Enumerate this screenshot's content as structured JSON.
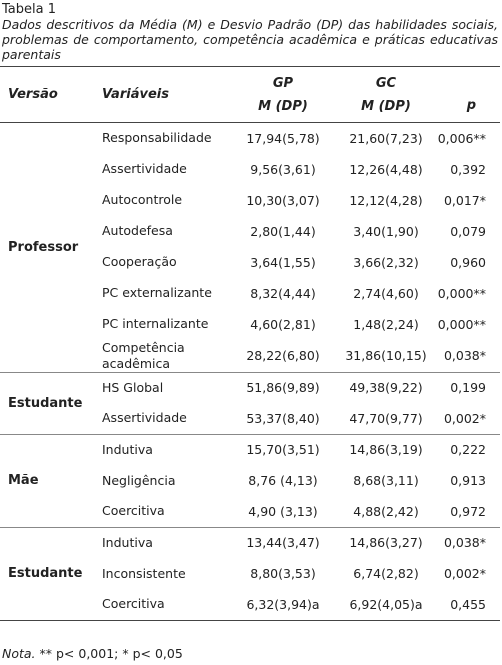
{
  "caption": {
    "label": "Tabela 1",
    "title": "Dados descritivos da Média (M) e Desvio Padrão (DP) das habilidades sociais, problemas de comportamento, competência acadêmica e práticas educativas parentais"
  },
  "table": {
    "headers": [
      "Versão",
      "Variáveis",
      {
        "group": "GP",
        "sub": "M (DP)"
      },
      {
        "group": "GC",
        "sub": "M (DP)"
      },
      "p"
    ],
    "groups": [
      {
        "name": "Professor",
        "rows": [
          [
            "Responsabilidade",
            "17,94(5,78)",
            "21,60(7,23)",
            "0,006**"
          ],
          [
            "Assertividade",
            "9,56(3,61)",
            "12,26(4,48)",
            "0,392"
          ],
          [
            "Autocontrole",
            "10,30(3,07)",
            "12,12(4,28)",
            "0,017*"
          ],
          [
            "Autodefesa",
            "2,80(1,44)",
            "3,40(1,90)",
            "0,079"
          ],
          [
            "Cooperação",
            "3,64(1,55)",
            "3,66(2,32)",
            "0,960"
          ],
          [
            "PC externalizante",
            "8,32(4,44)",
            "2,74(4,60)",
            "0,000**"
          ],
          [
            "PC internalizante",
            "4,60(2,81)",
            "1,48(2,24)",
            "0,000**"
          ],
          [
            "Competência acadêmica",
            "28,22(6,80)",
            "31,86(10,15)",
            "0,038*"
          ]
        ]
      },
      {
        "name": "Estudante",
        "rows": [
          [
            "HS Global",
            "51,86(9,89)",
            "49,38(9,22)",
            "0,199"
          ],
          [
            "Assertividade",
            "53,37(8,40)",
            "47,70(9,77)",
            "0,002*"
          ]
        ]
      },
      {
        "name": "Mãe",
        "rows": [
          [
            "Indutiva",
            "15,70(3,51)",
            "14,86(3,19)",
            "0,222"
          ],
          [
            "Negligência",
            "8,76 (4,13)",
            "8,68(3,11)",
            "0,913"
          ],
          [
            "Coercitiva",
            "4,90 (3,13)",
            "4,88(2,42)",
            "0,972"
          ]
        ]
      },
      {
        "name": "Estudante",
        "rows": [
          [
            "Indutiva",
            "13,44(3,47)",
            "14,86(3,27)",
            "0,038*"
          ],
          [
            "Inconsistente",
            "8,80(3,53)",
            "6,74(2,82)",
            "0,002*"
          ],
          [
            "Coercitiva",
            "6,32(3,94)a",
            "6,92(4,05)a",
            "0,455"
          ]
        ]
      }
    ]
  },
  "note": {
    "label": "Nota.",
    "text": " ** p< 0,001; * p< 0,05"
  }
}
